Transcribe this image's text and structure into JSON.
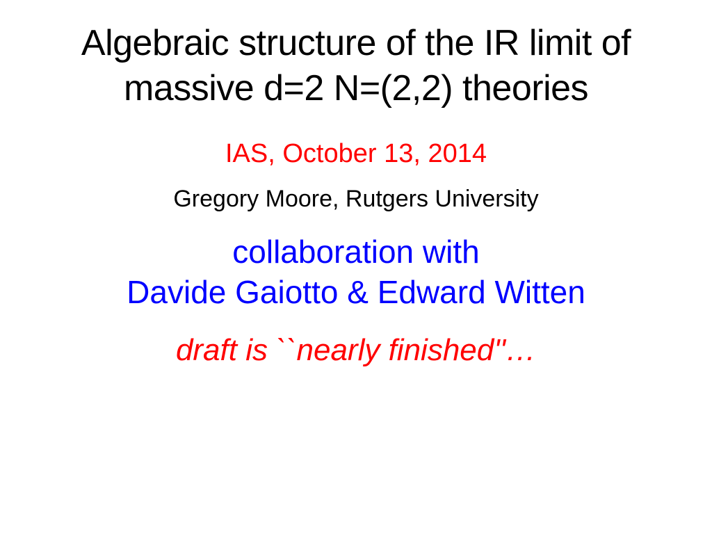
{
  "slide": {
    "title": "Algebraic structure of the IR limit of massive d=2 N=(2,2) theories",
    "date": "IAS, October 13, 2014",
    "author": "Gregory Moore, Rutgers University",
    "collaboration_line1": "collaboration with",
    "collaboration_line2": "Davide Gaiotto  &  Edward Witten",
    "draft_status": "draft is ``nearly finished''…"
  },
  "styling": {
    "background_color": "#ffffff",
    "title_color": "#000000",
    "title_fontsize": 52,
    "date_color": "#ff0000",
    "date_fontsize": 38,
    "author_color": "#000000",
    "author_fontsize": 34,
    "collaboration_color": "#0000ff",
    "collaboration_fontsize": 46,
    "draft_color": "#ff0000",
    "draft_fontsize": 44,
    "draft_style": "italic",
    "font_family": "Arial"
  }
}
